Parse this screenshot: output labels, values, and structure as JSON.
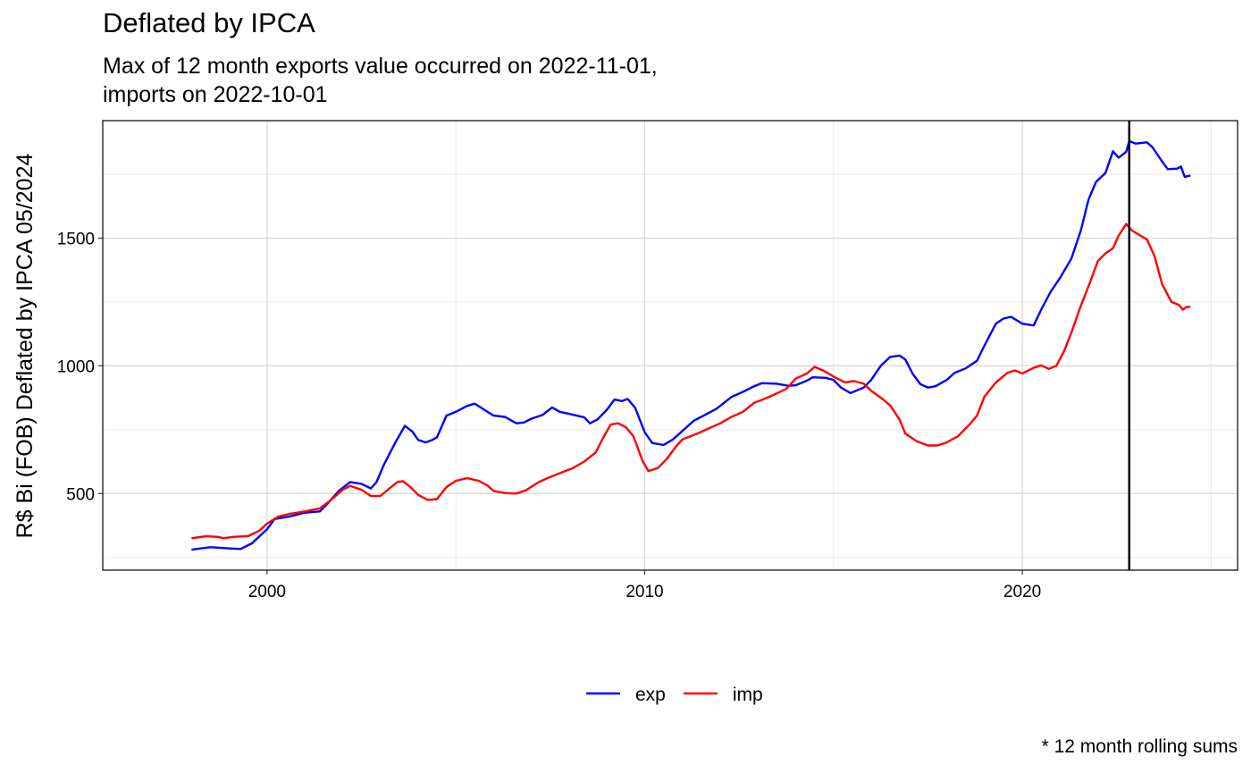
{
  "chart_data": {
    "type": "line",
    "title": "Deflated by IPCA",
    "subtitle": "Max of 12 month exports value occurred on 2022-11-01,\nimports on 2022-10-01",
    "caption": "* 12 month rolling sums",
    "xlabel": "",
    "ylabel": "R$ Bi (FOB) Deflated by IPCA 05/2024",
    "xlim": [
      1995.65,
      2025.7
    ],
    "ylim": [
      200,
      1960
    ],
    "x_ticks": [
      {
        "value": 2000,
        "label": "2000"
      },
      {
        "value": 2010,
        "label": "2010"
      },
      {
        "value": 2020,
        "label": "2020"
      }
    ],
    "y_ticks": [
      {
        "value": 500,
        "label": "500"
      },
      {
        "value": 1000,
        "label": "1000"
      },
      {
        "value": 1500,
        "label": "1500"
      }
    ],
    "x_minor_ticks": [
      1995,
      2005,
      2015,
      2025
    ],
    "y_minor_ticks": [
      250,
      750,
      1250,
      1750
    ],
    "grid": true,
    "vline": {
      "x": 2022.83,
      "color": "#000000"
    },
    "legend": {
      "position": "bottom"
    },
    "series": [
      {
        "name": "exp",
        "color": "#0000FF",
        "points": [
          [
            1998.0,
            280
          ],
          [
            1998.5,
            290
          ],
          [
            1999.0,
            285
          ],
          [
            1999.3,
            283
          ],
          [
            1999.6,
            305
          ],
          [
            2000.0,
            360
          ],
          [
            2000.2,
            400
          ],
          [
            2000.6,
            410
          ],
          [
            2001.0,
            425
          ],
          [
            2001.4,
            430
          ],
          [
            2001.6,
            460
          ],
          [
            2001.9,
            510
          ],
          [
            2002.2,
            545
          ],
          [
            2002.5,
            538
          ],
          [
            2002.75,
            520
          ],
          [
            2002.9,
            545
          ],
          [
            2003.1,
            615
          ],
          [
            2003.4,
            700
          ],
          [
            2003.65,
            765
          ],
          [
            2003.85,
            742
          ],
          [
            2004.0,
            710
          ],
          [
            2004.2,
            700
          ],
          [
            2004.35,
            708
          ],
          [
            2004.5,
            720
          ],
          [
            2004.75,
            805
          ],
          [
            2005.0,
            820
          ],
          [
            2005.3,
            843
          ],
          [
            2005.5,
            852
          ],
          [
            2005.75,
            828
          ],
          [
            2006.0,
            805
          ],
          [
            2006.3,
            800
          ],
          [
            2006.6,
            775
          ],
          [
            2006.8,
            778
          ],
          [
            2007.0,
            793
          ],
          [
            2007.3,
            808
          ],
          [
            2007.55,
            837
          ],
          [
            2007.75,
            820
          ],
          [
            2008.0,
            812
          ],
          [
            2008.4,
            798
          ],
          [
            2008.55,
            775
          ],
          [
            2008.75,
            790
          ],
          [
            2009.0,
            828
          ],
          [
            2009.2,
            868
          ],
          [
            2009.4,
            862
          ],
          [
            2009.55,
            870
          ],
          [
            2009.75,
            835
          ],
          [
            2010.0,
            740
          ],
          [
            2010.2,
            698
          ],
          [
            2010.5,
            690
          ],
          [
            2010.75,
            712
          ],
          [
            2011.0,
            745
          ],
          [
            2011.3,
            785
          ],
          [
            2011.6,
            808
          ],
          [
            2011.9,
            832
          ],
          [
            2012.1,
            855
          ],
          [
            2012.3,
            878
          ],
          [
            2012.6,
            898
          ],
          [
            2012.9,
            920
          ],
          [
            2013.1,
            932
          ],
          [
            2013.5,
            930
          ],
          [
            2013.8,
            922
          ],
          [
            2014.0,
            924
          ],
          [
            2014.3,
            942
          ],
          [
            2014.45,
            955
          ],
          [
            2014.8,
            953
          ],
          [
            2015.0,
            945
          ],
          [
            2015.2,
            915
          ],
          [
            2015.45,
            893
          ],
          [
            2015.8,
            915
          ],
          [
            2016.0,
            945
          ],
          [
            2016.25,
            1000
          ],
          [
            2016.5,
            1035
          ],
          [
            2016.75,
            1040
          ],
          [
            2016.9,
            1025
          ],
          [
            2017.1,
            968
          ],
          [
            2017.3,
            928
          ],
          [
            2017.5,
            915
          ],
          [
            2017.7,
            920
          ],
          [
            2018.0,
            945
          ],
          [
            2018.2,
            972
          ],
          [
            2018.5,
            990
          ],
          [
            2018.8,
            1020
          ],
          [
            2019.0,
            1080
          ],
          [
            2019.3,
            1165
          ],
          [
            2019.5,
            1185
          ],
          [
            2019.7,
            1192
          ],
          [
            2020.0,
            1165
          ],
          [
            2020.3,
            1158
          ],
          [
            2020.5,
            1220
          ],
          [
            2020.75,
            1290
          ],
          [
            2021.0,
            1345
          ],
          [
            2021.3,
            1420
          ],
          [
            2021.55,
            1530
          ],
          [
            2021.75,
            1650
          ],
          [
            2021.95,
            1720
          ],
          [
            2022.2,
            1755
          ],
          [
            2022.4,
            1840
          ],
          [
            2022.55,
            1815
          ],
          [
            2022.75,
            1838
          ],
          [
            2022.83,
            1880
          ],
          [
            2023.0,
            1870
          ],
          [
            2023.3,
            1875
          ],
          [
            2023.45,
            1855
          ],
          [
            2023.7,
            1800
          ],
          [
            2023.85,
            1770
          ],
          [
            2024.1,
            1772
          ],
          [
            2024.2,
            1780
          ],
          [
            2024.3,
            1740
          ],
          [
            2024.45,
            1745
          ]
        ]
      },
      {
        "name": "imp",
        "color": "#FF0000",
        "points": [
          [
            1998.0,
            325
          ],
          [
            1998.4,
            333
          ],
          [
            1998.7,
            330
          ],
          [
            1998.85,
            325
          ],
          [
            1999.1,
            330
          ],
          [
            1999.5,
            333
          ],
          [
            1999.8,
            355
          ],
          [
            2000.0,
            382
          ],
          [
            2000.3,
            410
          ],
          [
            2000.6,
            420
          ],
          [
            2001.0,
            430
          ],
          [
            2001.4,
            442
          ],
          [
            2001.7,
            475
          ],
          [
            2002.0,
            515
          ],
          [
            2002.2,
            530
          ],
          [
            2002.5,
            515
          ],
          [
            2002.75,
            490
          ],
          [
            2003.0,
            490
          ],
          [
            2003.2,
            515
          ],
          [
            2003.45,
            545
          ],
          [
            2003.6,
            548
          ],
          [
            2003.8,
            525
          ],
          [
            2004.0,
            495
          ],
          [
            2004.25,
            475
          ],
          [
            2004.5,
            478
          ],
          [
            2004.75,
            525
          ],
          [
            2005.0,
            550
          ],
          [
            2005.3,
            560
          ],
          [
            2005.6,
            550
          ],
          [
            2005.85,
            530
          ],
          [
            2006.0,
            510
          ],
          [
            2006.3,
            502
          ],
          [
            2006.6,
            500
          ],
          [
            2006.85,
            512
          ],
          [
            2007.2,
            545
          ],
          [
            2007.5,
            565
          ],
          [
            2007.8,
            582
          ],
          [
            2008.1,
            600
          ],
          [
            2008.4,
            625
          ],
          [
            2008.7,
            660
          ],
          [
            2008.9,
            718
          ],
          [
            2009.1,
            770
          ],
          [
            2009.3,
            775
          ],
          [
            2009.5,
            760
          ],
          [
            2009.7,
            725
          ],
          [
            2009.95,
            625
          ],
          [
            2010.1,
            588
          ],
          [
            2010.35,
            600
          ],
          [
            2010.6,
            638
          ],
          [
            2010.85,
            688
          ],
          [
            2011.0,
            712
          ],
          [
            2011.4,
            735
          ],
          [
            2011.7,
            755
          ],
          [
            2012.0,
            775
          ],
          [
            2012.3,
            800
          ],
          [
            2012.6,
            820
          ],
          [
            2012.9,
            855
          ],
          [
            2013.2,
            872
          ],
          [
            2013.5,
            892
          ],
          [
            2013.75,
            910
          ],
          [
            2014.0,
            950
          ],
          [
            2014.3,
            970
          ],
          [
            2014.5,
            996
          ],
          [
            2014.75,
            980
          ],
          [
            2015.0,
            958
          ],
          [
            2015.3,
            935
          ],
          [
            2015.55,
            940
          ],
          [
            2015.8,
            930
          ],
          [
            2016.0,
            902
          ],
          [
            2016.3,
            870
          ],
          [
            2016.5,
            845
          ],
          [
            2016.75,
            790
          ],
          [
            2016.9,
            735
          ],
          [
            2017.2,
            705
          ],
          [
            2017.5,
            688
          ],
          [
            2017.75,
            688
          ],
          [
            2018.0,
            700
          ],
          [
            2018.3,
            725
          ],
          [
            2018.6,
            770
          ],
          [
            2018.8,
            805
          ],
          [
            2019.0,
            880
          ],
          [
            2019.3,
            935
          ],
          [
            2019.6,
            972
          ],
          [
            2019.8,
            982
          ],
          [
            2020.0,
            970
          ],
          [
            2020.3,
            992
          ],
          [
            2020.5,
            1002
          ],
          [
            2020.7,
            988
          ],
          [
            2020.9,
            1000
          ],
          [
            2021.1,
            1055
          ],
          [
            2021.3,
            1130
          ],
          [
            2021.55,
            1235
          ],
          [
            2021.8,
            1330
          ],
          [
            2022.0,
            1410
          ],
          [
            2022.2,
            1440
          ],
          [
            2022.4,
            1460
          ],
          [
            2022.55,
            1510
          ],
          [
            2022.75,
            1555
          ],
          [
            2022.9,
            1530
          ],
          [
            2023.1,
            1512
          ],
          [
            2023.3,
            1495
          ],
          [
            2023.5,
            1430
          ],
          [
            2023.7,
            1320
          ],
          [
            2023.95,
            1250
          ],
          [
            2024.15,
            1238
          ],
          [
            2024.25,
            1220
          ],
          [
            2024.35,
            1230
          ],
          [
            2024.45,
            1232
          ]
        ]
      }
    ]
  }
}
